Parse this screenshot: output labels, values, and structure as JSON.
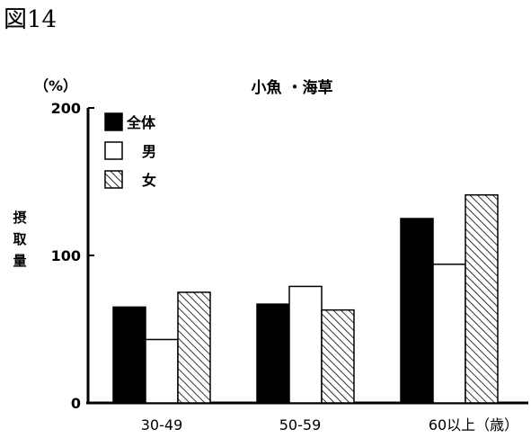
{
  "figure_label": "図14",
  "chart_data": {
    "type": "bar",
    "title": "小魚 ・海草",
    "unit_label": "（%）",
    "ylabel": "摂取量",
    "ylim": [
      0,
      200
    ],
    "yticks": [
      "0",
      "100",
      "200"
    ],
    "categories": [
      "30-49",
      "50-59",
      "60以上（歳）"
    ],
    "series": [
      {
        "name": "全体",
        "values": [
          65,
          67,
          125
        ]
      },
      {
        "name": "男",
        "values": [
          43,
          79,
          94
        ]
      },
      {
        "name": "女",
        "values": [
          75,
          63,
          141
        ]
      }
    ],
    "legend_position": "top-left",
    "grid": false
  },
  "colors": {
    "全体": "#000000",
    "男": "#ffffff",
    "女": "hatched"
  }
}
